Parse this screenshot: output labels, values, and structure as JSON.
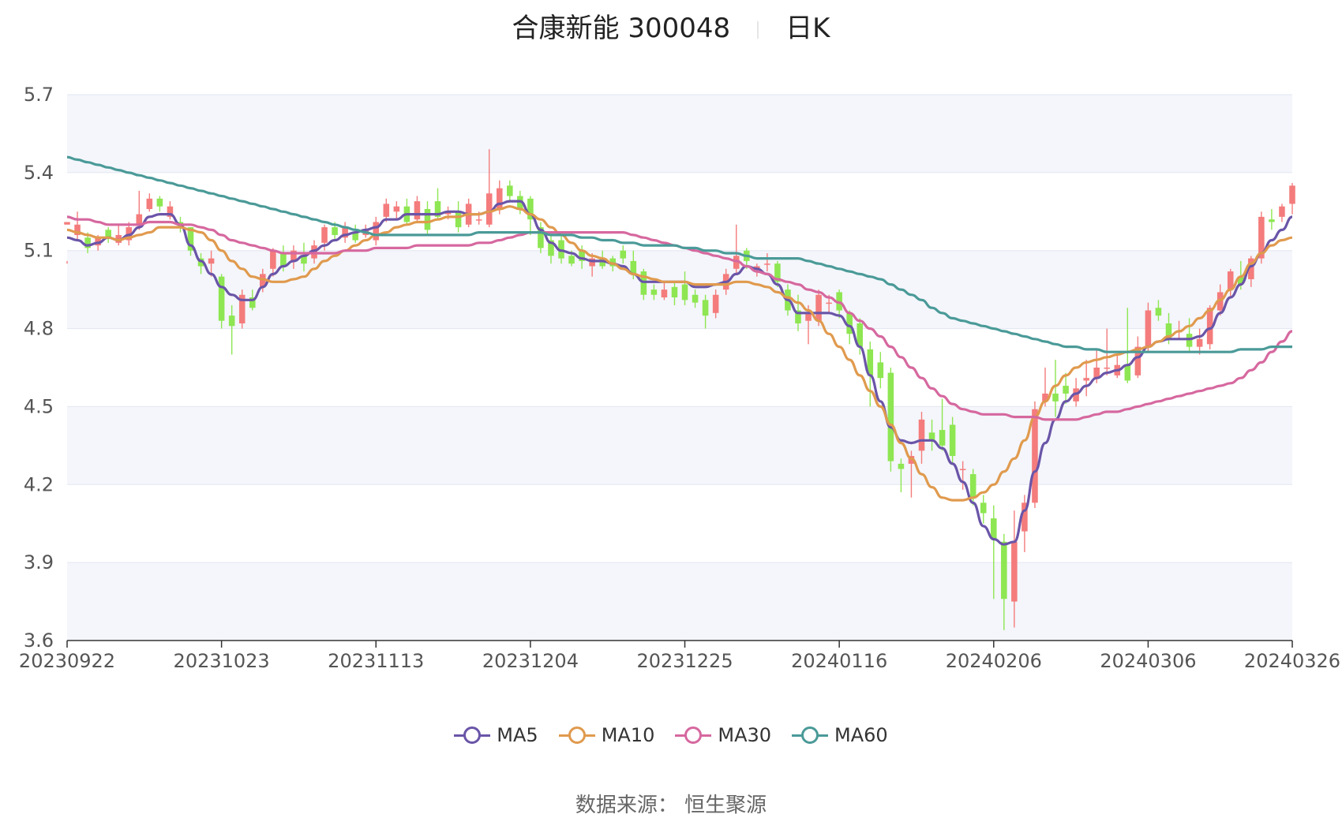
{
  "title": {
    "name": "合康新能 300048",
    "period": "日K"
  },
  "source": "数据来源：  恒生聚源",
  "colors": {
    "up": "#f47c7c",
    "down": "#8ee652",
    "grid": "#e3e6f0",
    "band": "#f4f6fb",
    "axis": "#555555"
  },
  "chart_data": {
    "type": "candlestick",
    "title": "合康新能 300048",
    "period": "日K",
    "ylim": [
      3.6,
      5.7
    ],
    "y_ticks": [
      "3.6",
      "3.9",
      "4.2",
      "4.5",
      "4.8",
      "5.1",
      "5.4",
      "5.7"
    ],
    "x_ticks": [
      "20230922",
      "20231023",
      "20231113",
      "20231204",
      "20231225",
      "20240116",
      "20240206",
      "20240306",
      "20240326"
    ],
    "x_tick_index": [
      0,
      15,
      30,
      45,
      60,
      75,
      90,
      105,
      119
    ],
    "grid": true,
    "legend_position": "bottom",
    "ohlc": [
      [
        5.2,
        5.21,
        5.06,
        5.05
      ],
      [
        5.16,
        5.2,
        5.25,
        5.14
      ],
      [
        5.15,
        5.11,
        5.17,
        5.09
      ],
      [
        5.12,
        5.15,
        5.16,
        5.1
      ],
      [
        5.18,
        5.15,
        5.19,
        5.13
      ],
      [
        5.13,
        5.16,
        5.2,
        5.12
      ],
      [
        5.14,
        5.19,
        5.21,
        5.12
      ],
      [
        5.2,
        5.24,
        5.33,
        5.18
      ],
      [
        5.26,
        5.3,
        5.32,
        5.25
      ],
      [
        5.3,
        5.27,
        5.31,
        5.25
      ],
      [
        5.23,
        5.27,
        5.29,
        5.22
      ],
      [
        5.21,
        5.19,
        5.23,
        5.17
      ],
      [
        5.19,
        5.1,
        5.19,
        5.08
      ],
      [
        5.07,
        5.04,
        5.09,
        5.01
      ],
      [
        5.05,
        5.07,
        5.1,
        5.0
      ],
      [
        5.0,
        4.83,
        5.01,
        4.8
      ],
      [
        4.85,
        4.81,
        4.89,
        4.7
      ],
      [
        4.82,
        4.93,
        4.95,
        4.8
      ],
      [
        4.92,
        4.88,
        4.95,
        4.87
      ],
      [
        4.96,
        5.01,
        5.03,
        4.94
      ],
      [
        5.03,
        5.1,
        5.11,
        5.0
      ],
      [
        5.09,
        5.04,
        5.12,
        5.02
      ],
      [
        5.06,
        5.1,
        5.12,
        5.03
      ],
      [
        5.08,
        5.05,
        5.13,
        5.02
      ],
      [
        5.07,
        5.12,
        5.14,
        5.05
      ],
      [
        5.13,
        5.19,
        5.2,
        5.1
      ],
      [
        5.19,
        5.16,
        5.21,
        5.14
      ],
      [
        5.15,
        5.19,
        5.21,
        5.13
      ],
      [
        5.17,
        5.14,
        5.2,
        5.13
      ],
      [
        5.16,
        5.18,
        5.2,
        5.15
      ],
      [
        5.14,
        5.21,
        5.23,
        5.12
      ],
      [
        5.23,
        5.28,
        5.3,
        5.21
      ],
      [
        5.25,
        5.27,
        5.29,
        5.22
      ],
      [
        5.27,
        5.21,
        5.3,
        5.2
      ],
      [
        5.22,
        5.29,
        5.31,
        5.21
      ],
      [
        5.26,
        5.18,
        5.29,
        5.16
      ],
      [
        5.29,
        5.23,
        5.34,
        5.22
      ],
      [
        5.24,
        5.25,
        5.27,
        5.22
      ],
      [
        5.25,
        5.19,
        5.29,
        5.17
      ],
      [
        5.2,
        5.28,
        5.3,
        5.19
      ],
      [
        5.22,
        5.22,
        5.25,
        5.2
      ],
      [
        5.2,
        5.32,
        5.49,
        5.19
      ],
      [
        5.26,
        5.34,
        5.37,
        5.24
      ],
      [
        5.35,
        5.31,
        5.37,
        5.29
      ],
      [
        5.31,
        5.26,
        5.33,
        5.24
      ],
      [
        5.3,
        5.22,
        5.31,
        5.16
      ],
      [
        5.19,
        5.11,
        5.21,
        5.09
      ],
      [
        5.14,
        5.08,
        5.16,
        5.05
      ],
      [
        5.14,
        5.07,
        5.16,
        5.05
      ],
      [
        5.08,
        5.05,
        5.1,
        5.04
      ],
      [
        5.1,
        5.06,
        5.12,
        5.03
      ],
      [
        5.04,
        5.07,
        5.09,
        5.0
      ],
      [
        5.07,
        5.04,
        5.1,
        5.03
      ],
      [
        5.07,
        5.04,
        5.08,
        5.02
      ],
      [
        5.1,
        5.07,
        5.12,
        5.05
      ],
      [
        5.06,
        5.01,
        5.1,
        4.99
      ],
      [
        5.02,
        4.93,
        5.03,
        4.91
      ],
      [
        4.95,
        4.93,
        4.97,
        4.91
      ],
      [
        4.92,
        4.95,
        4.98,
        4.91
      ],
      [
        4.96,
        4.92,
        4.98,
        4.89
      ],
      [
        4.97,
        4.91,
        5.02,
        4.89
      ],
      [
        4.93,
        4.9,
        4.95,
        4.88
      ],
      [
        4.91,
        4.85,
        4.93,
        4.8
      ],
      [
        4.86,
        4.93,
        4.95,
        4.84
      ],
      [
        4.95,
        5.01,
        5.03,
        4.93
      ],
      [
        5.03,
        5.08,
        5.2,
        5.01
      ],
      [
        5.1,
        5.06,
        5.11,
        5.03
      ],
      [
        5.03,
        5.04,
        5.05,
        5.0
      ],
      [
        5.05,
        5.05,
        5.09,
        5.02
      ],
      [
        5.05,
        4.98,
        5.06,
        4.96
      ],
      [
        4.95,
        4.87,
        4.97,
        4.85
      ],
      [
        4.87,
        4.82,
        4.93,
        4.79
      ],
      [
        4.83,
        4.86,
        4.89,
        4.74
      ],
      [
        4.83,
        4.93,
        4.95,
        4.81
      ],
      [
        4.9,
        4.9,
        4.93,
        4.86
      ],
      [
        4.94,
        4.87,
        4.95,
        4.84
      ],
      [
        4.86,
        4.78,
        4.87,
        4.74
      ],
      [
        4.82,
        4.73,
        4.84,
        4.7
      ],
      [
        4.72,
        4.62,
        4.75,
        4.5
      ],
      [
        4.67,
        4.61,
        4.71,
        4.57
      ],
      [
        4.63,
        4.29,
        4.65,
        4.25
      ],
      [
        4.28,
        4.26,
        4.3,
        4.17
      ],
      [
        4.28,
        4.31,
        4.33,
        4.15
      ],
      [
        4.33,
        4.45,
        4.48,
        4.28
      ],
      [
        4.4,
        4.37,
        4.45,
        4.33
      ],
      [
        4.41,
        4.35,
        4.53,
        4.33
      ],
      [
        4.43,
        4.31,
        4.46,
        4.28
      ],
      [
        4.26,
        4.26,
        4.29,
        4.18
      ],
      [
        4.24,
        4.15,
        4.26,
        4.12
      ],
      [
        4.13,
        4.09,
        4.16,
        4.05
      ],
      [
        4.07,
        3.99,
        4.12,
        3.76
      ],
      [
        3.98,
        3.76,
        4.01,
        3.64
      ],
      [
        3.75,
        3.98,
        4.1,
        3.65
      ],
      [
        4.02,
        4.13,
        4.16,
        3.94
      ],
      [
        4.13,
        4.49,
        4.52,
        4.11
      ],
      [
        4.52,
        4.55,
        4.65,
        4.5
      ],
      [
        4.55,
        4.52,
        4.68,
        4.46
      ],
      [
        4.58,
        4.55,
        4.63,
        4.51
      ],
      [
        4.52,
        4.57,
        4.61,
        4.5
      ],
      [
        4.6,
        4.61,
        4.68,
        4.54
      ],
      [
        4.61,
        4.65,
        4.72,
        4.59
      ],
      [
        4.65,
        4.65,
        4.8,
        4.62
      ],
      [
        4.62,
        4.66,
        4.7,
        4.61
      ],
      [
        4.66,
        4.6,
        4.88,
        4.59
      ],
      [
        4.62,
        4.73,
        4.77,
        4.61
      ],
      [
        4.73,
        4.87,
        4.9,
        4.71
      ],
      [
        4.88,
        4.85,
        4.91,
        4.83
      ],
      [
        4.82,
        4.76,
        4.86,
        4.74
      ],
      [
        4.79,
        4.79,
        4.83,
        4.76
      ],
      [
        4.78,
        4.73,
        4.84,
        4.71
      ],
      [
        4.73,
        4.76,
        4.8,
        4.7
      ],
      [
        4.74,
        4.88,
        4.89,
        4.72
      ],
      [
        4.87,
        4.94,
        4.97,
        4.85
      ],
      [
        4.95,
        5.02,
        5.03,
        4.92
      ],
      [
        5.0,
        4.97,
        5.06,
        4.95
      ],
      [
        4.99,
        5.07,
        5.08,
        4.96
      ],
      [
        5.07,
        5.23,
        5.25,
        5.05
      ],
      [
        5.22,
        5.21,
        5.26,
        5.18
      ],
      [
        5.23,
        5.27,
        5.28,
        5.21
      ],
      [
        5.28,
        5.35,
        5.36,
        5.24
      ]
    ],
    "series": [
      {
        "name": "MA5",
        "color": "#6a55a8",
        "values": [
          5.15,
          5.14,
          5.12,
          5.13,
          5.15,
          5.14,
          5.16,
          5.19,
          5.23,
          5.24,
          5.24,
          5.2,
          5.12,
          5.06,
          5.01,
          4.96,
          4.93,
          4.91,
          4.91,
          4.96,
          5.01,
          5.04,
          5.06,
          5.08,
          5.1,
          5.12,
          5.14,
          5.16,
          5.17,
          5.18,
          5.19,
          5.22,
          5.22,
          5.24,
          5.24,
          5.24,
          5.24,
          5.25,
          5.25,
          5.24,
          5.24,
          5.25,
          5.28,
          5.29,
          5.29,
          5.24,
          5.18,
          5.13,
          5.1,
          5.09,
          5.07,
          5.06,
          5.06,
          5.05,
          5.04,
          5.01,
          4.98,
          4.98,
          4.98,
          4.98,
          4.98,
          4.96,
          4.96,
          4.97,
          4.98,
          5.01,
          5.04,
          5.03,
          5.01,
          4.97,
          4.91,
          4.86,
          4.86,
          4.86,
          4.86,
          4.85,
          4.81,
          4.73,
          4.62,
          4.52,
          4.42,
          4.37,
          4.36,
          4.37,
          4.37,
          4.34,
          4.28,
          4.21,
          4.13,
          4.04,
          3.99,
          3.97,
          3.98,
          4.1,
          4.25,
          4.36,
          4.45,
          4.52,
          4.55,
          4.58,
          4.61,
          4.63,
          4.64,
          4.66,
          4.69,
          4.73,
          4.75,
          4.76,
          4.76,
          4.76,
          4.77,
          4.8,
          4.86,
          4.92,
          4.97,
          5.04,
          5.09,
          5.14,
          5.18,
          5.23
        ]
      },
      {
        "name": "MA10",
        "color": "#e09a4e",
        "values": [
          5.18,
          5.17,
          5.16,
          5.15,
          5.15,
          5.14,
          5.15,
          5.16,
          5.17,
          5.19,
          5.19,
          5.19,
          5.18,
          5.17,
          5.14,
          5.1,
          5.06,
          5.03,
          5.0,
          4.99,
          4.98,
          4.98,
          4.99,
          5.0,
          5.03,
          5.06,
          5.08,
          5.1,
          5.12,
          5.14,
          5.16,
          5.17,
          5.19,
          5.2,
          5.21,
          5.21,
          5.22,
          5.23,
          5.23,
          5.24,
          5.24,
          5.25,
          5.26,
          5.27,
          5.26,
          5.24,
          5.22,
          5.19,
          5.16,
          5.13,
          5.1,
          5.08,
          5.07,
          5.05,
          5.03,
          5.01,
          5.0,
          4.99,
          4.98,
          4.98,
          4.98,
          4.97,
          4.97,
          4.97,
          4.97,
          4.98,
          4.98,
          4.97,
          4.96,
          4.94,
          4.92,
          4.9,
          4.87,
          4.83,
          4.78,
          4.73,
          4.68,
          4.62,
          4.56,
          4.5,
          4.43,
          4.36,
          4.3,
          4.24,
          4.19,
          4.15,
          4.14,
          4.14,
          4.15,
          4.17,
          4.2,
          4.25,
          4.3,
          4.37,
          4.46,
          4.52,
          4.58,
          4.62,
          4.65,
          4.67,
          4.68,
          4.69,
          4.7,
          4.71,
          4.72,
          4.73,
          4.75,
          4.77,
          4.79,
          4.81,
          4.84,
          4.87,
          4.91,
          4.95,
          5.0,
          5.05,
          5.09,
          5.12,
          5.14,
          5.15
        ]
      },
      {
        "name": "MA30",
        "color": "#d6689f",
        "values": [
          5.23,
          5.22,
          5.22,
          5.21,
          5.2,
          5.2,
          5.2,
          5.2,
          5.21,
          5.21,
          5.21,
          5.2,
          5.2,
          5.19,
          5.18,
          5.16,
          5.14,
          5.13,
          5.12,
          5.11,
          5.1,
          5.09,
          5.09,
          5.09,
          5.09,
          5.09,
          5.09,
          5.1,
          5.1,
          5.1,
          5.11,
          5.11,
          5.11,
          5.11,
          5.12,
          5.12,
          5.12,
          5.12,
          5.12,
          5.12,
          5.13,
          5.13,
          5.14,
          5.15,
          5.16,
          5.17,
          5.17,
          5.17,
          5.17,
          5.17,
          5.17,
          5.17,
          5.17,
          5.17,
          5.17,
          5.16,
          5.15,
          5.14,
          5.13,
          5.12,
          5.11,
          5.1,
          5.09,
          5.08,
          5.07,
          5.06,
          5.04,
          5.02,
          5.01,
          4.99,
          4.98,
          4.97,
          4.95,
          4.94,
          4.92,
          4.9,
          4.86,
          4.83,
          4.8,
          4.77,
          4.73,
          4.69,
          4.65,
          4.61,
          4.57,
          4.54,
          4.51,
          4.49,
          4.48,
          4.47,
          4.47,
          4.47,
          4.46,
          4.46,
          4.46,
          4.45,
          4.45,
          4.45,
          4.45,
          4.46,
          4.47,
          4.48,
          4.48,
          4.49,
          4.5,
          4.51,
          4.52,
          4.53,
          4.54,
          4.55,
          4.56,
          4.57,
          4.58,
          4.59,
          4.61,
          4.64,
          4.67,
          4.71,
          4.75,
          4.79
        ]
      },
      {
        "name": "MA60",
        "color": "#4a9a98",
        "values": [
          5.46,
          5.45,
          5.44,
          5.43,
          5.42,
          5.41,
          5.4,
          5.39,
          5.38,
          5.37,
          5.36,
          5.35,
          5.34,
          5.33,
          5.32,
          5.31,
          5.3,
          5.29,
          5.28,
          5.27,
          5.26,
          5.25,
          5.24,
          5.23,
          5.22,
          5.21,
          5.2,
          5.19,
          5.18,
          5.17,
          5.16,
          5.16,
          5.16,
          5.16,
          5.16,
          5.16,
          5.16,
          5.16,
          5.16,
          5.16,
          5.17,
          5.17,
          5.17,
          5.17,
          5.17,
          5.17,
          5.17,
          5.16,
          5.16,
          5.16,
          5.15,
          5.15,
          5.14,
          5.14,
          5.13,
          5.13,
          5.12,
          5.12,
          5.12,
          5.12,
          5.11,
          5.11,
          5.1,
          5.1,
          5.09,
          5.09,
          5.08,
          5.07,
          5.07,
          5.07,
          5.07,
          5.07,
          5.06,
          5.05,
          5.04,
          5.03,
          5.02,
          5.01,
          5.0,
          4.99,
          4.97,
          4.95,
          4.93,
          4.91,
          4.88,
          4.86,
          4.84,
          4.83,
          4.82,
          4.81,
          4.8,
          4.79,
          4.78,
          4.77,
          4.76,
          4.75,
          4.74,
          4.73,
          4.73,
          4.72,
          4.72,
          4.71,
          4.71,
          4.71,
          4.71,
          4.71,
          4.71,
          4.71,
          4.71,
          4.71,
          4.71,
          4.71,
          4.71,
          4.71,
          4.72,
          4.72,
          4.72,
          4.73,
          4.73,
          4.73
        ]
      }
    ]
  }
}
